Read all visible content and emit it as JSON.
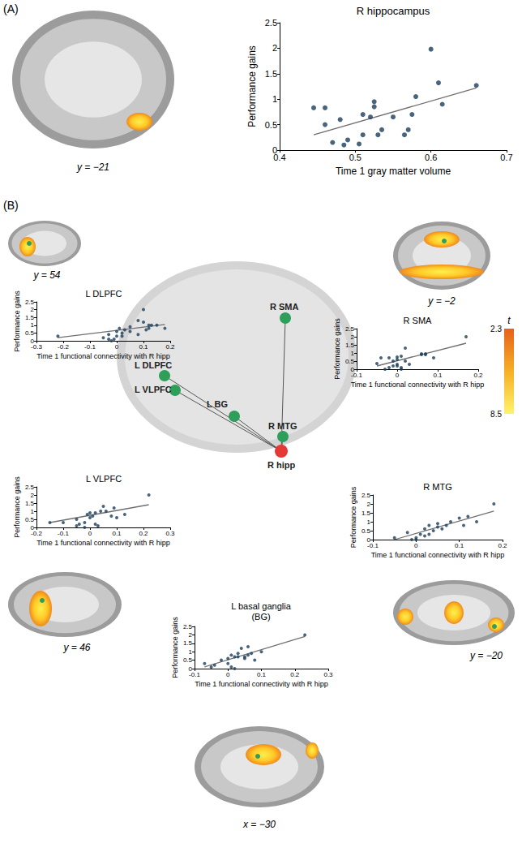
{
  "chart_data": [
    {
      "type": "scatter",
      "title": "R hippocampus",
      "x_label": "Time 1 gray matter volume",
      "y_label": "Performance gains",
      "color": "#1b3f5c",
      "grid": false,
      "xlim": [
        0.4,
        0.7
      ],
      "xticks": [
        0.4,
        0.5,
        0.6,
        0.7
      ],
      "ylim": [
        0,
        2.5
      ],
      "yticks": [
        0,
        0.5,
        1,
        1.5,
        2,
        2.5
      ],
      "x": [
        0.445,
        0.46,
        0.46,
        0.47,
        0.48,
        0.485,
        0.49,
        0.505,
        0.51,
        0.51,
        0.52,
        0.525,
        0.525,
        0.53,
        0.535,
        0.55,
        0.565,
        0.57,
        0.575,
        0.58,
        0.6,
        0.61,
        0.615,
        0.66
      ],
      "values": [
        0.83,
        0.83,
        0.5,
        0.15,
        0.6,
        0.1,
        0.2,
        0.12,
        0.3,
        0.7,
        0.65,
        0.95,
        0.85,
        0.3,
        0.4,
        0.65,
        0.3,
        0.4,
        0.7,
        1.05,
        1.98,
        1.32,
        0.9,
        1.27
      ],
      "fit_line": {
        "x": [
          0.445,
          0.66
        ],
        "values": [
          0.3,
          1.22
        ]
      }
    },
    {
      "type": "scatter",
      "title": "L DLPFC",
      "x_label": "Time 1 functional connectivity with R hipp",
      "y_label": "Performance gains",
      "color": "#1b3f5c",
      "grid": false,
      "xlim": [
        -0.3,
        0.2
      ],
      "xticks": [
        -0.3,
        -0.2,
        -0.1,
        0,
        0.1,
        0.2
      ],
      "ylim": [
        0,
        2.5
      ],
      "yticks": [
        0,
        0.5,
        1,
        1.5,
        2,
        2.5
      ],
      "x": [
        -0.22,
        -0.05,
        -0.03,
        -0.03,
        -0.02,
        0,
        0.01,
        0.02,
        0.02,
        0.03,
        0.05,
        0.05,
        0.08,
        0.08,
        0.1,
        0.1,
        0.11,
        0.12,
        0.12,
        0.13,
        0.15,
        0.18,
        0,
        -0.01
      ],
      "values": [
        0.3,
        0.2,
        0.1,
        0.4,
        0,
        0.6,
        0.8,
        0.5,
        0.3,
        0.7,
        0.9,
        0.6,
        1.3,
        0.4,
        1.2,
        2.0,
        0.7,
        0.8,
        1.0,
        1.0,
        1.0,
        0.8,
        0.3,
        0.1
      ],
      "fit_line": {
        "x": [
          -0.22,
          0.18
        ],
        "values": [
          0.2,
          1.05
        ]
      }
    },
    {
      "type": "scatter",
      "title": "R SMA",
      "x_label": "Time 1 functional connectivity with R hipp",
      "y_label": "Performance gains",
      "color": "#1b3f5c",
      "grid": false,
      "xlim": [
        -0.1,
        0.2
      ],
      "xticks": [
        -0.1,
        0,
        0.1,
        0.2
      ],
      "ylim": [
        0,
        2.5
      ],
      "yticks": [
        0,
        0.5,
        1,
        1.5,
        2,
        2.5
      ],
      "x": [
        -0.05,
        -0.04,
        -0.03,
        -0.02,
        -0.02,
        -0.01,
        0,
        0,
        0,
        0.01,
        0.01,
        0.01,
        0.02,
        0.03,
        0.06,
        0.06,
        0.07,
        0.07,
        0.09,
        0.17,
        0.02,
        -0.01,
        0
      ],
      "values": [
        0.35,
        0.7,
        0,
        0.7,
        0.1,
        0.5,
        0.75,
        0.2,
        0.3,
        0,
        0.1,
        0.8,
        1.3,
        0.3,
        0.9,
        0.95,
        0.9,
        0.95,
        0.7,
        2.0,
        0.5,
        0.2,
        0.6
      ],
      "fit_line": {
        "x": [
          -0.05,
          0.17
        ],
        "values": [
          0.2,
          1.6
        ]
      }
    },
    {
      "type": "scatter",
      "title": "L VLPFC",
      "x_label": "Time 1 functional connectivity with R hipp",
      "y_label": "Performance gains",
      "color": "#1b3f5c",
      "grid": false,
      "xlim": [
        -0.2,
        0.3
      ],
      "xticks": [
        -0.2,
        -0.1,
        0,
        0.1,
        0.2,
        0.3
      ],
      "ylim": [
        0,
        2.5
      ],
      "yticks": [
        0,
        0.5,
        1,
        1.5,
        2,
        2.5
      ],
      "x": [
        -0.15,
        -0.1,
        -0.05,
        -0.05,
        -0.04,
        -0.02,
        -0.01,
        0,
        0,
        0.01,
        0.02,
        0.03,
        0.04,
        0.05,
        0.06,
        0.08,
        0.09,
        0.1,
        0.13,
        0.22,
        0.02,
        -0.02
      ],
      "values": [
        0.3,
        0.3,
        0.5,
        0.1,
        0.2,
        0.3,
        0.8,
        0.9,
        0.6,
        0.7,
        0.9,
        0.1,
        1.0,
        1.3,
        1.0,
        0.7,
        1.2,
        0.6,
        0.8,
        2.0,
        0.2,
        0
      ],
      "fit_line": {
        "x": [
          -0.15,
          0.22
        ],
        "values": [
          0.3,
          1.4
        ]
      }
    },
    {
      "type": "scatter",
      "title": "L basal ganglia\n(BG)",
      "x_label": "Time 1 functional connectivity with R hipp",
      "y_label": "Performance gains",
      "color": "#1b3f5c",
      "grid": false,
      "xlim": [
        -0.1,
        0.3
      ],
      "xticks": [
        -0.1,
        0,
        0.1,
        0.2,
        0.3
      ],
      "ylim": [
        0,
        2.5
      ],
      "yticks": [
        0,
        0.5,
        1,
        1.5,
        2,
        2.5
      ],
      "x": [
        -0.07,
        -0.05,
        -0.04,
        -0.02,
        0,
        0,
        0.01,
        0.02,
        0.02,
        0.03,
        0.03,
        0.04,
        0.05,
        0.06,
        0.06,
        0.07,
        0.08,
        0.1,
        0.23,
        0.01,
        0.05
      ],
      "values": [
        0.3,
        0.1,
        0.2,
        0.5,
        0.6,
        0.3,
        0.8,
        0.7,
        0,
        0.7,
        0.9,
        1.2,
        0.7,
        1.3,
        0.8,
        0.9,
        0.5,
        1.0,
        2.0,
        0.1,
        0.6
      ],
      "fit_line": {
        "x": [
          -0.07,
          0.23
        ],
        "values": [
          0.1,
          1.9
        ]
      }
    },
    {
      "type": "scatter",
      "title": "R MTG",
      "x_label": "Time 1 functional connectivity with R hipp",
      "y_label": "Performance gains",
      "color": "#1b3f5c",
      "grid": false,
      "xlim": [
        -0.1,
        0.2
      ],
      "xticks": [
        -0.1,
        0,
        0.1,
        0.2
      ],
      "ylim": [
        0,
        2.5
      ],
      "yticks": [
        0,
        0.5,
        1,
        1.5,
        2,
        2.5
      ],
      "x": [
        -0.05,
        -0.02,
        -0.01,
        0,
        0.01,
        0.02,
        0.02,
        0.03,
        0.04,
        0.05,
        0.05,
        0.06,
        0.07,
        0.08,
        0.1,
        0.11,
        0.12,
        0.14,
        0.18,
        0.03,
        0
      ],
      "values": [
        0.1,
        0.4,
        0,
        0.1,
        0.3,
        0.6,
        0.2,
        0.8,
        0.5,
        0.7,
        0.9,
        0.6,
        0.8,
        1.0,
        1.2,
        0.8,
        1.3,
        1.0,
        2.0,
        0.3,
        0
      ],
      "fit_line": {
        "x": [
          -0.05,
          0.18
        ],
        "values": [
          0,
          1.6
        ]
      }
    }
  ],
  "figure": {
    "panel_labels": [
      "(A)",
      "(B)"
    ],
    "slice_labels": [
      "y = −21",
      "y = 54",
      "y = −2",
      "y = 46",
      "x = −30",
      "y = −20"
    ],
    "network": {
      "nodes": [
        "R SMA",
        "L DLPFC",
        "L VLPFC",
        "L BG",
        "R MTG"
      ],
      "hub": "R hipp"
    },
    "colorbar": {
      "title": "t",
      "range": [
        2.3,
        8.5
      ],
      "ticks": [
        2.3,
        8.5
      ]
    }
  }
}
